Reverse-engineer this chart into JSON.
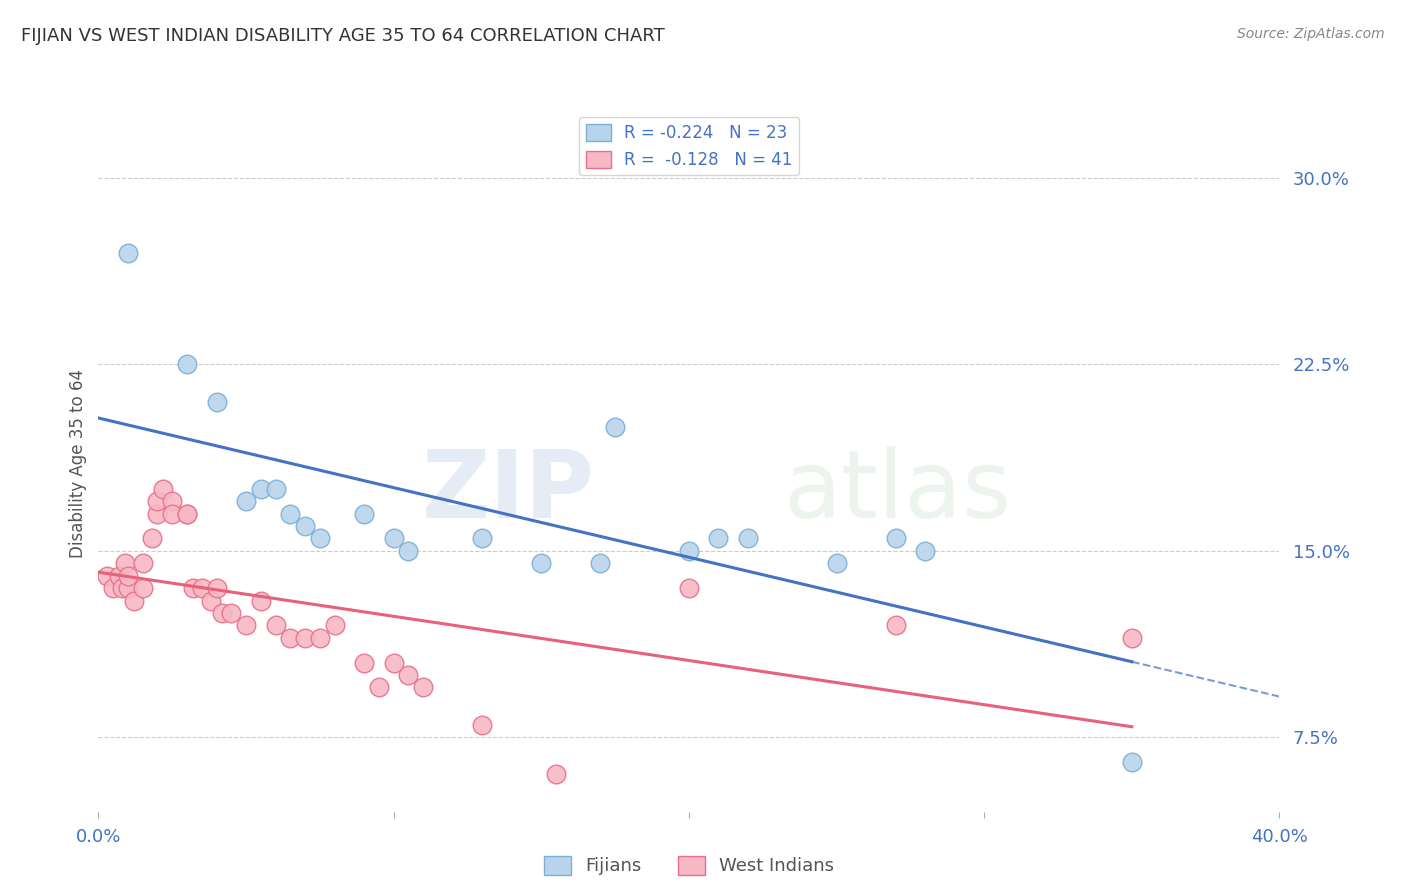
{
  "title": "FIJIAN VS WEST INDIAN DISABILITY AGE 35 TO 64 CORRELATION CHART",
  "source": "Source: ZipAtlas.com",
  "ylabel": "Disability Age 35 to 64",
  "yticks": [
    "7.5%",
    "15.0%",
    "22.5%",
    "30.0%"
  ],
  "ytick_values": [
    0.075,
    0.15,
    0.225,
    0.3
  ],
  "xlim": [
    0.0,
    0.4
  ],
  "ylim": [
    0.045,
    0.325
  ],
  "fijian_edge_color": "#7bafd4",
  "fijian_fill_color": "#b8d4ec",
  "west_indian_edge_color": "#e8708a",
  "west_indian_fill_color": "#f5b8c4",
  "trend_fijian_color": "#4472c4",
  "trend_west_indian_color": "#e8607a",
  "R_fijian": -0.224,
  "N_fijian": 23,
  "R_west_indian": -0.128,
  "N_west_indian": 41,
  "fijian_x": [
    0.01,
    0.03,
    0.04,
    0.05,
    0.055,
    0.06,
    0.065,
    0.07,
    0.075,
    0.09,
    0.1,
    0.105,
    0.13,
    0.15,
    0.17,
    0.175,
    0.2,
    0.21,
    0.22,
    0.25,
    0.27,
    0.28,
    0.35
  ],
  "fijian_y": [
    0.27,
    0.225,
    0.21,
    0.17,
    0.175,
    0.175,
    0.165,
    0.16,
    0.155,
    0.165,
    0.155,
    0.15,
    0.155,
    0.145,
    0.145,
    0.2,
    0.15,
    0.155,
    0.155,
    0.145,
    0.155,
    0.15,
    0.065
  ],
  "west_indian_x": [
    0.003,
    0.005,
    0.007,
    0.008,
    0.009,
    0.01,
    0.01,
    0.012,
    0.015,
    0.015,
    0.018,
    0.02,
    0.02,
    0.022,
    0.025,
    0.025,
    0.03,
    0.03,
    0.032,
    0.035,
    0.038,
    0.04,
    0.042,
    0.045,
    0.05,
    0.055,
    0.06,
    0.065,
    0.07,
    0.075,
    0.08,
    0.09,
    0.095,
    0.1,
    0.105,
    0.11,
    0.13,
    0.155,
    0.2,
    0.27,
    0.35
  ],
  "west_indian_y": [
    0.14,
    0.135,
    0.14,
    0.135,
    0.145,
    0.135,
    0.14,
    0.13,
    0.135,
    0.145,
    0.155,
    0.165,
    0.17,
    0.175,
    0.17,
    0.165,
    0.165,
    0.165,
    0.135,
    0.135,
    0.13,
    0.135,
    0.125,
    0.125,
    0.12,
    0.13,
    0.12,
    0.115,
    0.115,
    0.115,
    0.12,
    0.105,
    0.095,
    0.105,
    0.1,
    0.095,
    0.08,
    0.06,
    0.135,
    0.12,
    0.115
  ],
  "watermark_zip": "ZIP",
  "watermark_atlas": "atlas",
  "background_color": "#ffffff",
  "grid_color": "#cccccc"
}
